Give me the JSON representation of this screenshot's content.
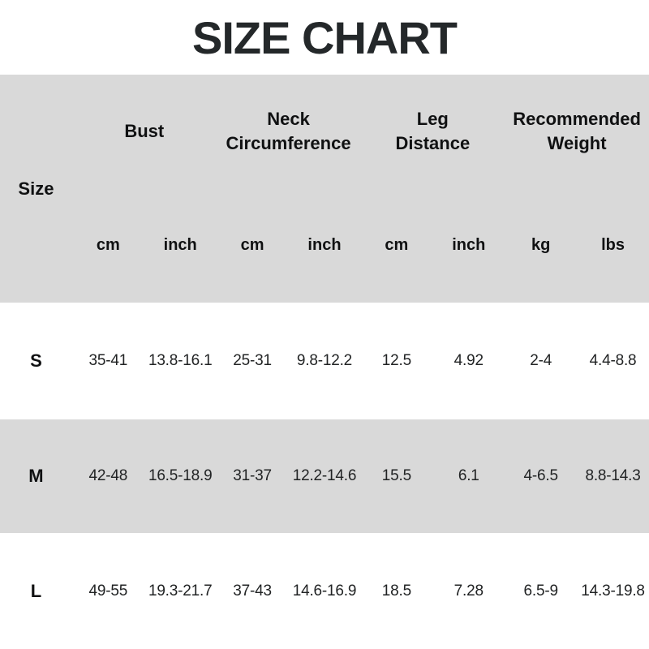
{
  "title": "SIZE CHART",
  "colors": {
    "header_bg": "#d9d9d9",
    "stripe_bg": "#d9d9d9",
    "title_text": "#24282a",
    "body_text": "#212324"
  },
  "chart_data": {
    "type": "table",
    "title": "SIZE CHART",
    "corner_label": "Size",
    "column_groups": [
      "Bust",
      "Neck Circumference",
      "Leg Distance",
      "Recommended Weight"
    ],
    "unit_headers": [
      "cm",
      "inch",
      "cm",
      "inch",
      "cm",
      "inch",
      "kg",
      "lbs"
    ],
    "rows": [
      {
        "size": "S",
        "values": [
          "35-41",
          "13.8-16.1",
          "25-31",
          "9.8-12.2",
          "12.5",
          "4.92",
          "2-4",
          "4.4-8.8"
        ]
      },
      {
        "size": "M",
        "values": [
          "42-48",
          "16.5-18.9",
          "31-37",
          "12.2-14.6",
          "15.5",
          "6.1",
          "4-6.5",
          "8.8-14.3"
        ]
      },
      {
        "size": "L",
        "values": [
          "49-55",
          "19.3-21.7",
          "37-43",
          "14.6-16.9",
          "18.5",
          "7.28",
          "6.5-9",
          "14.3-19.8"
        ]
      }
    ]
  }
}
